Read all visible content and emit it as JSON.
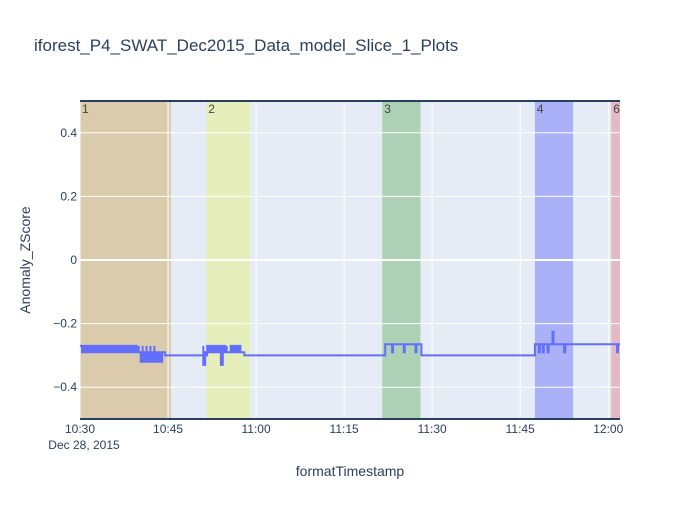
{
  "chart_data": {
    "type": "line",
    "title": "iforest_P4_SWAT_Dec2015_Data_model_Slice_1_Plots",
    "xlabel": "formatTimestamp",
    "ylabel": "Anomaly_ZScore",
    "x_start_label": "Dec 28, 2015",
    "xlim": [
      "2015-12-28 10:30:00",
      "2015-12-28 12:02:00"
    ],
    "ylim": [
      -0.5,
      0.5
    ],
    "x_ticks": [
      {
        "t": "2015-12-28 10:30:00",
        "label": "10:30"
      },
      {
        "t": "2015-12-28 10:45:00",
        "label": "10:45"
      },
      {
        "t": "2015-12-28 11:00:00",
        "label": "11:00"
      },
      {
        "t": "2015-12-28 11:15:00",
        "label": "11:15"
      },
      {
        "t": "2015-12-28 11:30:00",
        "label": "11:30"
      },
      {
        "t": "2015-12-28 11:45:00",
        "label": "11:45"
      },
      {
        "t": "2015-12-28 12:00:00",
        "label": "12:00"
      }
    ],
    "y_ticks": [
      {
        "v": 0.4,
        "label": "0.4"
      },
      {
        "v": 0.2,
        "label": "0.2"
      },
      {
        "v": 0,
        "label": "0"
      },
      {
        "v": -0.2,
        "label": "−0.2"
      },
      {
        "v": -0.4,
        "label": "−0.4"
      }
    ],
    "grid": true,
    "line_color": "#636efa",
    "regions": [
      {
        "label": "1",
        "start": "2015-12-28 10:30:00",
        "end": "2015-12-28 10:45:30",
        "color": "#d2b070"
      },
      {
        "label": "2",
        "start": "2015-12-28 10:51:30",
        "end": "2015-12-28 10:59:00",
        "color": "#e8f08c"
      },
      {
        "label": "3",
        "start": "2015-12-28 11:21:30",
        "end": "2015-12-28 11:28:00",
        "color": "#7ebc7e"
      },
      {
        "label": "4",
        "start": "2015-12-28 11:47:30",
        "end": "2015-12-28 11:54:00",
        "color": "#7a82fb"
      },
      {
        "label": "6",
        "start": "2015-12-28 12:00:30",
        "end": "2015-12-28 12:02:00",
        "color": "#e3909c"
      }
    ],
    "series": [
      {
        "segments": [
          {
            "start": "2015-12-28 10:30:00",
            "end": "2015-12-28 10:43:00",
            "values": [
              -0.27,
              -0.29
            ],
            "pattern": "alternate"
          },
          {
            "start": "2015-12-28 10:40:00",
            "end": "2015-12-28 10:44:00",
            "values": [
              -0.29,
              -0.32
            ],
            "pattern": "alternate"
          },
          {
            "start": "2015-12-28 10:51:00",
            "end": "2015-12-28 10:57:30",
            "values": [
              -0.27,
              -0.29
            ],
            "pattern": "alternate"
          }
        ],
        "points": [
          {
            "x": "2015-12-28 10:30:00",
            "y": -0.27
          },
          {
            "x": "2015-12-28 10:44:00",
            "y": -0.29
          },
          {
            "x": "2015-12-28 10:44:30",
            "y": -0.3
          },
          {
            "x": "2015-12-28 10:51:00",
            "y": -0.33
          },
          {
            "x": "2015-12-28 10:51:30",
            "y": -0.3
          },
          {
            "x": "2015-12-28 10:54:00",
            "y": -0.33
          },
          {
            "x": "2015-12-28 10:55:00",
            "y": -0.29
          },
          {
            "x": "2015-12-28 10:58:00",
            "y": -0.3
          },
          {
            "x": "2015-12-28 11:22:00",
            "y": -0.265
          },
          {
            "x": "2015-12-28 11:23:00",
            "y": -0.265
          },
          {
            "x": "2015-12-28 11:23:10",
            "y": -0.29
          },
          {
            "x": "2015-12-28 11:23:20",
            "y": -0.265
          },
          {
            "x": "2015-12-28 11:25:00",
            "y": -0.265
          },
          {
            "x": "2015-12-28 11:25:10",
            "y": -0.29
          },
          {
            "x": "2015-12-28 11:25:20",
            "y": -0.265
          },
          {
            "x": "2015-12-28 11:27:00",
            "y": -0.265
          },
          {
            "x": "2015-12-28 11:27:10",
            "y": -0.29
          },
          {
            "x": "2015-12-28 11:27:20",
            "y": -0.265
          },
          {
            "x": "2015-12-28 11:28:00",
            "y": -0.265
          },
          {
            "x": "2015-12-28 11:28:10",
            "y": -0.3
          },
          {
            "x": "2015-12-28 11:47:30",
            "y": -0.265
          },
          {
            "x": "2015-12-28 11:48:00",
            "y": -0.265
          },
          {
            "x": "2015-12-28 11:48:10",
            "y": -0.29
          },
          {
            "x": "2015-12-28 11:48:20",
            "y": -0.265
          },
          {
            "x": "2015-12-28 11:48:40",
            "y": -0.265
          },
          {
            "x": "2015-12-28 11:48:50",
            "y": -0.29
          },
          {
            "x": "2015-12-28 11:49:00",
            "y": -0.265
          },
          {
            "x": "2015-12-28 11:49:30",
            "y": -0.265
          },
          {
            "x": "2015-12-28 11:49:40",
            "y": -0.29
          },
          {
            "x": "2015-12-28 11:49:50",
            "y": -0.265
          },
          {
            "x": "2015-12-28 11:50:20",
            "y": -0.265
          },
          {
            "x": "2015-12-28 11:50:30",
            "y": -0.225
          },
          {
            "x": "2015-12-28 11:50:40",
            "y": -0.265
          },
          {
            "x": "2015-12-28 11:52:20",
            "y": -0.265
          },
          {
            "x": "2015-12-28 11:52:30",
            "y": -0.29
          },
          {
            "x": "2015-12-28 11:52:40",
            "y": -0.265
          },
          {
            "x": "2015-12-28 12:01:20",
            "y": -0.265
          },
          {
            "x": "2015-12-28 12:01:30",
            "y": -0.29
          },
          {
            "x": "2015-12-28 12:01:40",
            "y": -0.265
          },
          {
            "x": "2015-12-28 12:02:00",
            "y": -0.265
          }
        ]
      }
    ]
  }
}
